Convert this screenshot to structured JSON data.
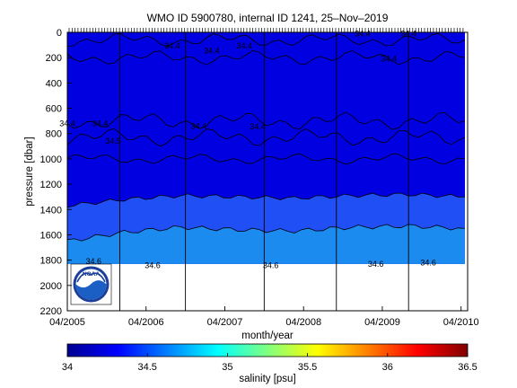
{
  "chart_data": {
    "type": "heatmap",
    "title": "WMO ID 5900780, internal ID 1241, 25–Nov–2019",
    "xlabel": "month/year",
    "ylabel": "pressure [dbar]",
    "x_ticks": [
      "04/2005",
      "04/2006",
      "04/2007",
      "04/2008",
      "04/2009",
      "04/2010"
    ],
    "x_range": [
      "2005-04",
      "2010-05"
    ],
    "y_ticks": [
      0,
      200,
      400,
      600,
      800,
      1000,
      1200,
      1400,
      1600,
      1800,
      2000,
      2200
    ],
    "ylim": [
      2200,
      0
    ],
    "y_reversed": true,
    "data_max_pressure": 1830,
    "vertical_lines": [
      "2005-12",
      "2006-10",
      "2007-10",
      "2008-09",
      "2009-08"
    ],
    "salinity_layers": [
      {
        "salinity_psu": 34.2,
        "top_pressure": 0,
        "bottom_pressure_profile": [
          1370,
          1320,
          1290,
          1300,
          1310,
          1290,
          1280,
          1300
        ]
      },
      {
        "salinity_psu": 34.4,
        "top_pressure_profile": [
          1370,
          1320,
          1290,
          1300,
          1310,
          1290,
          1280,
          1300
        ],
        "bottom_pressure_profile": [
          1650,
          1580,
          1540,
          1560,
          1570,
          1540,
          1530,
          1550
        ]
      },
      {
        "salinity_psu": 34.5,
        "top_pressure_profile": [
          1650,
          1580,
          1540,
          1560,
          1570,
          1540,
          1530,
          1550
        ],
        "bottom_pressure": 1830
      }
    ],
    "upper_layer_salinity_psu": 34.15,
    "contour_labels": [
      {
        "text": "34.4",
        "x": "2006-08",
        "y": 105
      },
      {
        "text": "34.4",
        "x": "2007-02",
        "y": 145
      },
      {
        "text": "34.4",
        "x": "2007-07",
        "y": 105
      },
      {
        "text": "34.4",
        "x": "2005-04",
        "y": 720
      },
      {
        "text": "34.4",
        "x": "2005-09",
        "y": 720
      },
      {
        "text": "34.4",
        "x": "2006-12",
        "y": 740
      },
      {
        "text": "34.5",
        "x": "2005-11",
        "y": 860
      },
      {
        "text": "34.4",
        "x": "2007-09",
        "y": 745
      },
      {
        "text": "34.4",
        "x": "2009-01",
        "y": 10
      },
      {
        "text": "34.4",
        "x": "2009-08",
        "y": 10
      },
      {
        "text": "34.4",
        "x": "2009-05",
        "y": 210
      },
      {
        "text": "34.6",
        "x": "2005-08",
        "y": 1810
      },
      {
        "text": "34.6",
        "x": "2006-05",
        "y": 1840
      },
      {
        "text": "34.6",
        "x": "2007-11",
        "y": 1840
      },
      {
        "text": "34.6",
        "x": "2009-03",
        "y": 1830
      },
      {
        "text": "34.6",
        "x": "2009-11",
        "y": 1820
      }
    ],
    "colorbar": {
      "label": "salinity [psu]",
      "min": 34,
      "max": 36.5,
      "ticks": [
        "34",
        "34.5",
        "35",
        "35.5",
        "36",
        "36.5"
      ]
    },
    "logo": "NOAA",
    "grid": false
  },
  "colors": {
    "upper_layer": "#0000e0",
    "mid_layer": "#1f4ff5",
    "deep_layer": "#1c8bf0",
    "no_data": "#ffffff",
    "axis": "#000000",
    "colorbar_stops": [
      "#00008f",
      "#0000ff",
      "#0080ff",
      "#00ffff",
      "#80ff80",
      "#ffff00",
      "#ff8000",
      "#ff0000",
      "#800000"
    ]
  }
}
